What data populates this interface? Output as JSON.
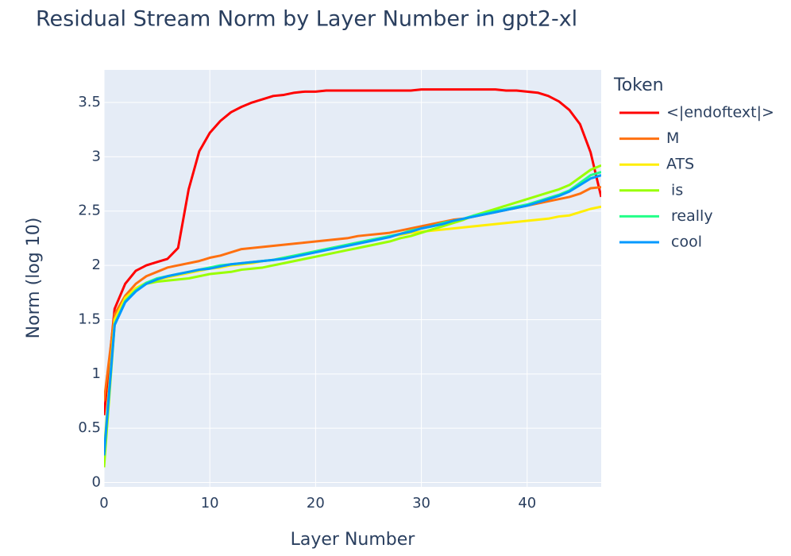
{
  "chart_data": {
    "type": "line",
    "title": "Residual Stream Norm by Layer Number in gpt2-xl",
    "x_label": "Layer Number",
    "y_label": "Norm (log 10)",
    "legend_title": "Token",
    "legend_position": "right",
    "grid": true,
    "x": [
      0,
      1,
      2,
      3,
      4,
      5,
      6,
      7,
      8,
      9,
      10,
      11,
      12,
      13,
      14,
      15,
      16,
      17,
      18,
      19,
      20,
      21,
      22,
      23,
      24,
      25,
      26,
      27,
      28,
      29,
      30,
      31,
      32,
      33,
      34,
      35,
      36,
      37,
      38,
      39,
      40,
      41,
      42,
      43,
      44,
      45,
      46,
      47
    ],
    "xlim": [
      0,
      47
    ],
    "xticks": [
      0,
      10,
      20,
      30,
      40
    ],
    "ylim": [
      -0.04,
      3.8
    ],
    "yticks": [
      0,
      0.5,
      1,
      1.5,
      2,
      2.5,
      3,
      3.5
    ],
    "series": [
      {
        "name": "<|endoftext|>",
        "color": "#ff0000",
        "values": [
          0.62,
          1.6,
          1.83,
          1.95,
          2.0,
          2.03,
          2.06,
          2.16,
          2.7,
          3.05,
          3.22,
          3.33,
          3.41,
          3.46,
          3.5,
          3.53,
          3.56,
          3.57,
          3.59,
          3.6,
          3.6,
          3.61,
          3.61,
          3.61,
          3.61,
          3.61,
          3.61,
          3.61,
          3.61,
          3.61,
          3.62,
          3.62,
          3.62,
          3.62,
          3.62,
          3.62,
          3.62,
          3.62,
          3.61,
          3.61,
          3.6,
          3.59,
          3.56,
          3.51,
          3.43,
          3.3,
          3.04,
          2.63
        ]
      },
      {
        "name": "M",
        "color": "#ff7010",
        "values": [
          0.75,
          1.55,
          1.72,
          1.83,
          1.9,
          1.94,
          1.98,
          2.0,
          2.02,
          2.04,
          2.07,
          2.09,
          2.12,
          2.15,
          2.16,
          2.17,
          2.18,
          2.19,
          2.2,
          2.21,
          2.22,
          2.23,
          2.24,
          2.25,
          2.27,
          2.28,
          2.29,
          2.3,
          2.32,
          2.34,
          2.36,
          2.38,
          2.4,
          2.42,
          2.43,
          2.45,
          2.47,
          2.49,
          2.51,
          2.53,
          2.55,
          2.57,
          2.59,
          2.61,
          2.63,
          2.66,
          2.71,
          2.72
        ]
      },
      {
        "name": "ATS",
        "color": "#ffee00",
        "values": [
          0.3,
          1.5,
          1.7,
          1.79,
          1.84,
          1.87,
          1.89,
          1.91,
          1.93,
          1.95,
          1.97,
          1.98,
          2.0,
          2.01,
          2.02,
          2.04,
          2.05,
          2.07,
          2.09,
          2.11,
          2.13,
          2.15,
          2.17,
          2.19,
          2.21,
          2.23,
          2.25,
          2.27,
          2.28,
          2.3,
          2.31,
          2.32,
          2.33,
          2.34,
          2.35,
          2.36,
          2.37,
          2.38,
          2.39,
          2.4,
          2.41,
          2.42,
          2.43,
          2.45,
          2.46,
          2.49,
          2.52,
          2.54
        ]
      },
      {
        "name": " is",
        "color": "#99ff00",
        "values": [
          0.14,
          1.45,
          1.67,
          1.77,
          1.83,
          1.85,
          1.86,
          1.87,
          1.88,
          1.9,
          1.92,
          1.93,
          1.94,
          1.96,
          1.97,
          1.98,
          2.0,
          2.02,
          2.04,
          2.06,
          2.08,
          2.1,
          2.12,
          2.14,
          2.16,
          2.18,
          2.2,
          2.22,
          2.25,
          2.27,
          2.3,
          2.33,
          2.36,
          2.39,
          2.42,
          2.46,
          2.49,
          2.52,
          2.55,
          2.58,
          2.61,
          2.64,
          2.67,
          2.7,
          2.74,
          2.81,
          2.88,
          2.92
        ]
      },
      {
        "name": " really",
        "color": "#22ff88",
        "values": [
          0.27,
          1.46,
          1.67,
          1.77,
          1.84,
          1.88,
          1.9,
          1.92,
          1.94,
          1.96,
          1.98,
          2.0,
          2.01,
          2.02,
          2.03,
          2.04,
          2.05,
          2.07,
          2.09,
          2.11,
          2.13,
          2.15,
          2.17,
          2.19,
          2.21,
          2.23,
          2.25,
          2.27,
          2.29,
          2.32,
          2.34,
          2.36,
          2.39,
          2.41,
          2.43,
          2.46,
          2.48,
          2.5,
          2.52,
          2.54,
          2.56,
          2.59,
          2.62,
          2.65,
          2.69,
          2.76,
          2.83,
          2.86
        ]
      },
      {
        "name": " cool",
        "color": "#0099ff",
        "values": [
          0.25,
          1.45,
          1.66,
          1.76,
          1.83,
          1.87,
          1.9,
          1.92,
          1.94,
          1.96,
          1.97,
          1.99,
          2.01,
          2.02,
          2.03,
          2.04,
          2.05,
          2.06,
          2.08,
          2.1,
          2.12,
          2.14,
          2.16,
          2.18,
          2.2,
          2.22,
          2.24,
          2.26,
          2.29,
          2.31,
          2.34,
          2.36,
          2.38,
          2.41,
          2.43,
          2.45,
          2.47,
          2.49,
          2.51,
          2.53,
          2.55,
          2.58,
          2.61,
          2.64,
          2.68,
          2.74,
          2.8,
          2.83
        ]
      }
    ]
  }
}
